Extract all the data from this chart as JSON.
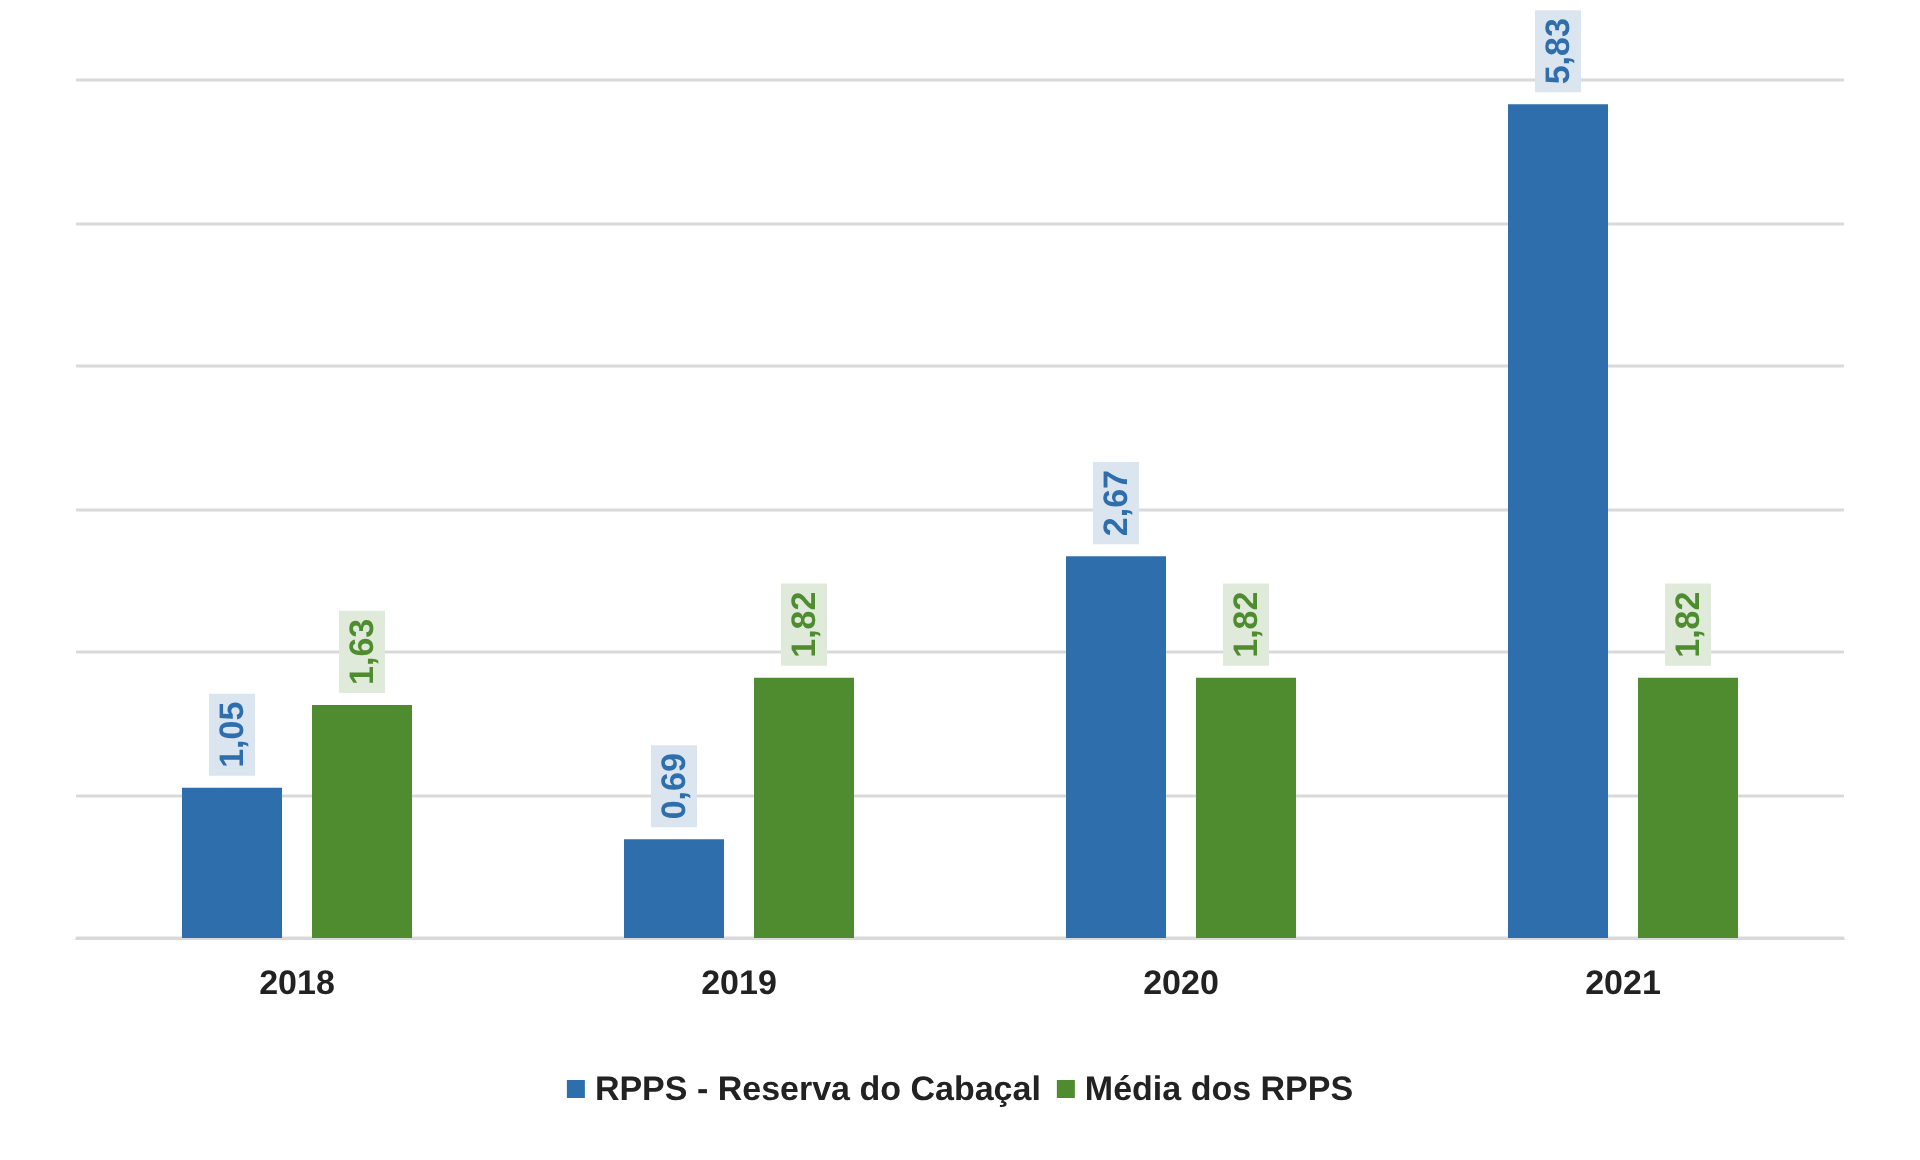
{
  "chart_data": {
    "type": "bar",
    "categories": [
      "2018",
      "2019",
      "2020",
      "2021"
    ],
    "series": [
      {
        "name": "RPPS - Reserva do Cabaçal",
        "color": "#2f6ead",
        "values": [
          1.05,
          0.69,
          2.67,
          5.83
        ],
        "value_labels": [
          "1,05",
          "0,69",
          "2,67",
          "5,83"
        ]
      },
      {
        "name": "Média dos RPPS",
        "color": "#4f8c2f",
        "values": [
          1.63,
          1.82,
          1.82,
          1.82
        ],
        "value_labels": [
          "1,63",
          "1,82",
          "1,82",
          "1,82"
        ]
      }
    ],
    "grid": "y",
    "legend": "bottom",
    "tick_labels": "x"
  }
}
